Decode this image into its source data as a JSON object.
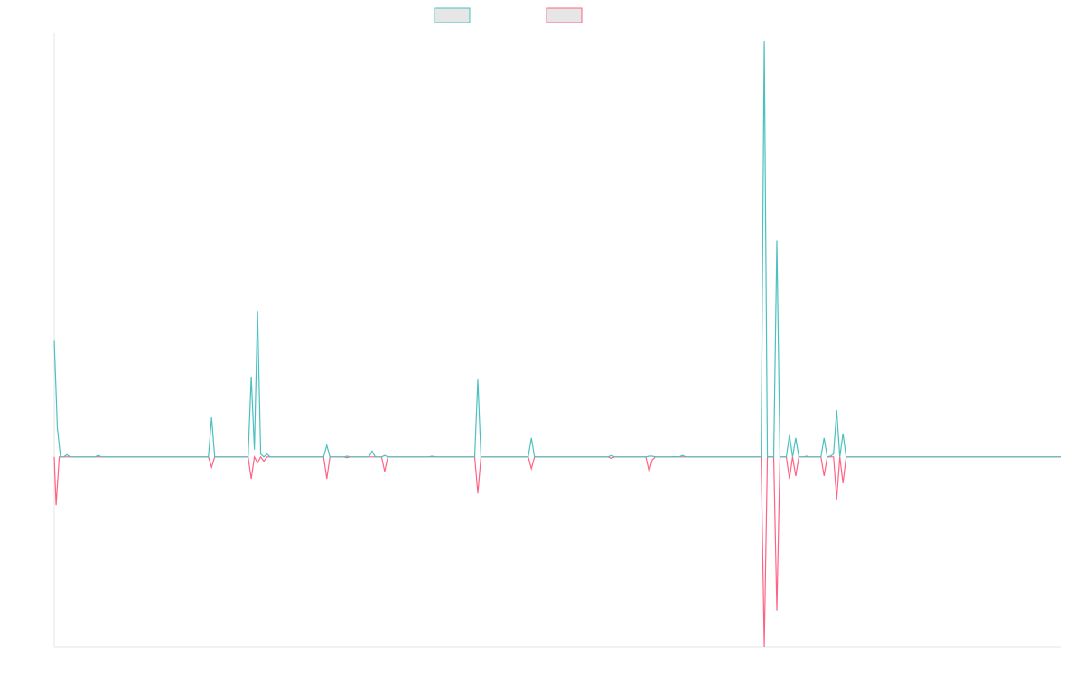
{
  "chart_data": {
    "type": "line",
    "title": "",
    "xlabel": "",
    "ylabel": "",
    "grid": false,
    "legend_position": "top-center",
    "xlim": [
      0,
      160
    ],
    "ylim": [
      -13,
      29
    ],
    "series": [
      {
        "name": "",
        "color": "#4bc0c0",
        "fill": "#e6e6e6",
        "points": [
          [
            0,
            8
          ],
          [
            0.5,
            2
          ],
          [
            1,
            0
          ],
          [
            1.5,
            0
          ],
          [
            2,
            0.15
          ],
          [
            2.5,
            0
          ],
          [
            6.5,
            0
          ],
          [
            7,
            0.1
          ],
          [
            7.5,
            0
          ],
          [
            24.5,
            0
          ],
          [
            25,
            2.7
          ],
          [
            25.5,
            0
          ],
          [
            30.8,
            0
          ],
          [
            31.3,
            5.5
          ],
          [
            31.8,
            0.5
          ],
          [
            32.3,
            10
          ],
          [
            32.8,
            0.2
          ],
          [
            33.3,
            0
          ],
          [
            33.8,
            0.2
          ],
          [
            34.3,
            0
          ],
          [
            42.8,
            0
          ],
          [
            43.3,
            0.8
          ],
          [
            43.8,
            0
          ],
          [
            46,
            0
          ],
          [
            46.5,
            0.05
          ],
          [
            47,
            0
          ],
          [
            50,
            0
          ],
          [
            50.5,
            0.4
          ],
          [
            51,
            0
          ],
          [
            52,
            0
          ],
          [
            52.5,
            0.1
          ],
          [
            53,
            0
          ],
          [
            59.5,
            0
          ],
          [
            60,
            0.05
          ],
          [
            60.5,
            0
          ],
          [
            66.8,
            0
          ],
          [
            67.3,
            5.3
          ],
          [
            67.8,
            0
          ],
          [
            75.3,
            0
          ],
          [
            75.8,
            1.3
          ],
          [
            76.3,
            0
          ],
          [
            88,
            0
          ],
          [
            88.5,
            0.1
          ],
          [
            89,
            0
          ],
          [
            94,
            0
          ],
          [
            94.5,
            0.05
          ],
          [
            95,
            0.05
          ],
          [
            95.5,
            0
          ],
          [
            98,
            0
          ],
          [
            98.5,
            0.02
          ],
          [
            99,
            0
          ],
          [
            99.3,
            0
          ],
          [
            99.8,
            0.1
          ],
          [
            100.3,
            0
          ],
          [
            112.3,
            0
          ],
          [
            112.8,
            28.5
          ],
          [
            113.3,
            0
          ],
          [
            114.3,
            0
          ],
          [
            114.8,
            14.8
          ],
          [
            115.3,
            0
          ],
          [
            116.3,
            0
          ],
          [
            116.8,
            1.5
          ],
          [
            117.3,
            0
          ],
          [
            117.8,
            1.3
          ],
          [
            118.3,
            0
          ],
          [
            119,
            0
          ],
          [
            119.5,
            0.05
          ],
          [
            120,
            0
          ],
          [
            121.8,
            0
          ],
          [
            122.3,
            1.3
          ],
          [
            122.8,
            0
          ],
          [
            123.3,
            0.05
          ],
          [
            123.8,
            0.2
          ],
          [
            124.3,
            3.2
          ],
          [
            124.8,
            0
          ],
          [
            125.3,
            1.6
          ],
          [
            125.8,
            0
          ],
          [
            160,
            0
          ]
        ]
      },
      {
        "name": "",
        "color": "#ff6384",
        "fill": "#e6e6e6",
        "points": [
          [
            0,
            0
          ],
          [
            0.3,
            -3.3
          ],
          [
            0.8,
            0
          ],
          [
            24.5,
            0
          ],
          [
            25,
            -0.7
          ],
          [
            25.5,
            0
          ],
          [
            30.8,
            0
          ],
          [
            31.3,
            -1.5
          ],
          [
            31.8,
            0
          ],
          [
            32.3,
            -0.4
          ],
          [
            32.8,
            0
          ],
          [
            33.3,
            -0.3
          ],
          [
            33.8,
            0
          ],
          [
            42.8,
            0
          ],
          [
            43.3,
            -1.5
          ],
          [
            43.8,
            0
          ],
          [
            46,
            0
          ],
          [
            46.5,
            -0.05
          ],
          [
            47,
            0
          ],
          [
            52,
            0
          ],
          [
            52.5,
            -1
          ],
          [
            53,
            0
          ],
          [
            66.8,
            0
          ],
          [
            67.3,
            -2.5
          ],
          [
            67.8,
            0
          ],
          [
            75.3,
            0
          ],
          [
            75.8,
            -0.8
          ],
          [
            76.3,
            0
          ],
          [
            88,
            0
          ],
          [
            88.5,
            -0.1
          ],
          [
            89,
            0
          ],
          [
            94,
            0
          ],
          [
            94.5,
            -1
          ],
          [
            95,
            -0.2
          ],
          [
            95.5,
            0
          ],
          [
            112.3,
            0
          ],
          [
            112.8,
            -13
          ],
          [
            113.3,
            0
          ],
          [
            114.3,
            0
          ],
          [
            114.8,
            -10.5
          ],
          [
            115.3,
            0
          ],
          [
            116.3,
            0
          ],
          [
            116.8,
            -1.5
          ],
          [
            117.3,
            0
          ],
          [
            117.8,
            -1.3
          ],
          [
            118.3,
            0
          ],
          [
            121.8,
            0
          ],
          [
            122.3,
            -1.3
          ],
          [
            122.8,
            0
          ],
          [
            123.3,
            0
          ],
          [
            123.8,
            0
          ],
          [
            124.3,
            -2.9
          ],
          [
            124.8,
            0
          ],
          [
            125.3,
            -1.8
          ],
          [
            125.8,
            0
          ],
          [
            160,
            0
          ]
        ]
      }
    ]
  }
}
